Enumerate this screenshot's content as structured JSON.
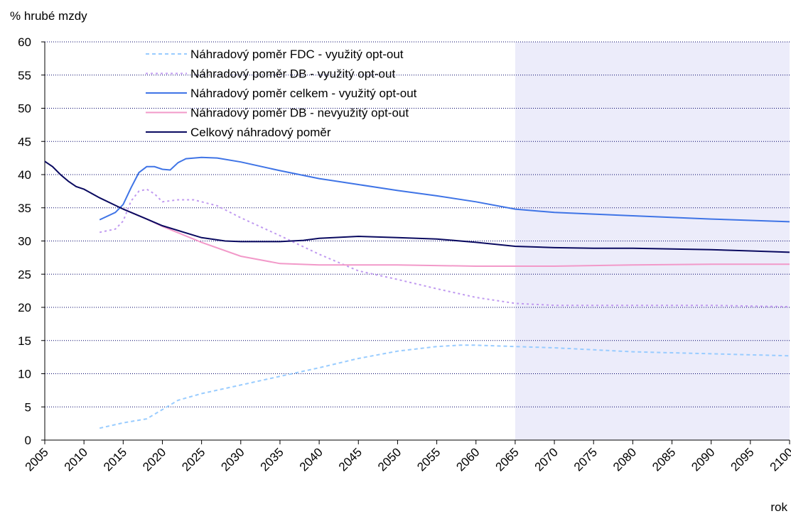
{
  "chart_data": {
    "type": "line",
    "y_axis_label": "% hrubé mzdy",
    "x_axis_label": "rok",
    "xlim": [
      2005,
      2100
    ],
    "ylim": [
      0,
      60
    ],
    "xticks": [
      2005,
      2010,
      2015,
      2020,
      2025,
      2030,
      2035,
      2040,
      2045,
      2050,
      2055,
      2060,
      2065,
      2070,
      2075,
      2080,
      2085,
      2090,
      2095,
      2100
    ],
    "yticks": [
      0,
      5,
      10,
      15,
      20,
      25,
      30,
      35,
      40,
      45,
      50,
      55,
      60
    ],
    "grid": true,
    "shaded_region": [
      2065,
      2100
    ],
    "shade_color": "#ececfa",
    "legend_position": "top-left",
    "series": [
      {
        "name": "Náhradový poměr FDC - využitý opt-out",
        "color": "#99ccff",
        "dash": "dashed",
        "x": [
          2012,
          2015,
          2018,
          2020,
          2022,
          2025,
          2030,
          2035,
          2040,
          2045,
          2050,
          2055,
          2058,
          2060,
          2065,
          2070,
          2075,
          2080,
          2090,
          2100
        ],
        "values": [
          1.8,
          2.6,
          3.2,
          4.6,
          6,
          7,
          8.3,
          9.6,
          10.9,
          12.3,
          13.4,
          14.1,
          14.3,
          14.3,
          14.1,
          13.9,
          13.6,
          13.3,
          13,
          12.7
        ]
      },
      {
        "name": "Náhradový poměr DB - využitý opt-out",
        "color": "#c09af0",
        "dash": "dotted",
        "x": [
          2012,
          2014,
          2015,
          2016,
          2017,
          2018,
          2019,
          2020,
          2022,
          2024,
          2027,
          2030,
          2035,
          2040,
          2045,
          2050,
          2055,
          2060,
          2065,
          2070,
          2080,
          2090,
          2100
        ],
        "values": [
          31.3,
          31.8,
          33,
          36,
          37.5,
          37.8,
          37.1,
          35.9,
          36.2,
          36.2,
          35.3,
          33.5,
          30.8,
          28,
          25.5,
          24.2,
          22.8,
          21.5,
          20.6,
          20.3,
          20.3,
          20.3,
          20.1
        ]
      },
      {
        "name": "Náhradový poměr celkem - využitý opt-out",
        "color": "#3f74e6",
        "dash": "solid",
        "x": [
          2012,
          2014,
          2015,
          2016,
          2017,
          2018,
          2019,
          2020,
          2021,
          2022,
          2023,
          2025,
          2027,
          2030,
          2035,
          2040,
          2045,
          2050,
          2055,
          2060,
          2065,
          2070,
          2080,
          2090,
          2100
        ],
        "values": [
          33.2,
          34.3,
          35.5,
          38,
          40.3,
          41.2,
          41.2,
          40.8,
          40.7,
          41.8,
          42.4,
          42.6,
          42.5,
          41.9,
          40.6,
          39.4,
          38.5,
          37.6,
          36.8,
          35.9,
          34.8,
          34.3,
          33.8,
          33.3,
          32.9
        ]
      },
      {
        "name": "Náhradový poměr DB - nevyužitý opt-out",
        "color": "#f299c9",
        "dash": "solid",
        "x": [
          2015,
          2018,
          2020,
          2025,
          2030,
          2035,
          2040,
          2050,
          2060,
          2070,
          2080,
          2090,
          2100
        ],
        "values": [
          34.8,
          33.3,
          32.2,
          29.8,
          27.7,
          26.6,
          26.4,
          26.4,
          26.2,
          26.2,
          26.4,
          26.5,
          26.5
        ]
      },
      {
        "name": "Celkový náhradový poměr",
        "color": "#0a0a60",
        "dash": "solid",
        "x": [
          2005,
          2006,
          2007,
          2008,
          2009,
          2010,
          2012,
          2015,
          2018,
          2020,
          2025,
          2028,
          2030,
          2035,
          2038,
          2040,
          2045,
          2050,
          2055,
          2060,
          2065,
          2070,
          2075,
          2080,
          2085,
          2090,
          2095,
          2100
        ],
        "values": [
          42,
          41.2,
          40,
          39,
          38.2,
          37.8,
          36.5,
          34.8,
          33.3,
          32.3,
          30.5,
          30,
          29.9,
          29.9,
          30.1,
          30.4,
          30.7,
          30.5,
          30.3,
          29.8,
          29.2,
          29,
          28.9,
          28.9,
          28.8,
          28.7,
          28.5,
          28.3
        ]
      }
    ]
  }
}
